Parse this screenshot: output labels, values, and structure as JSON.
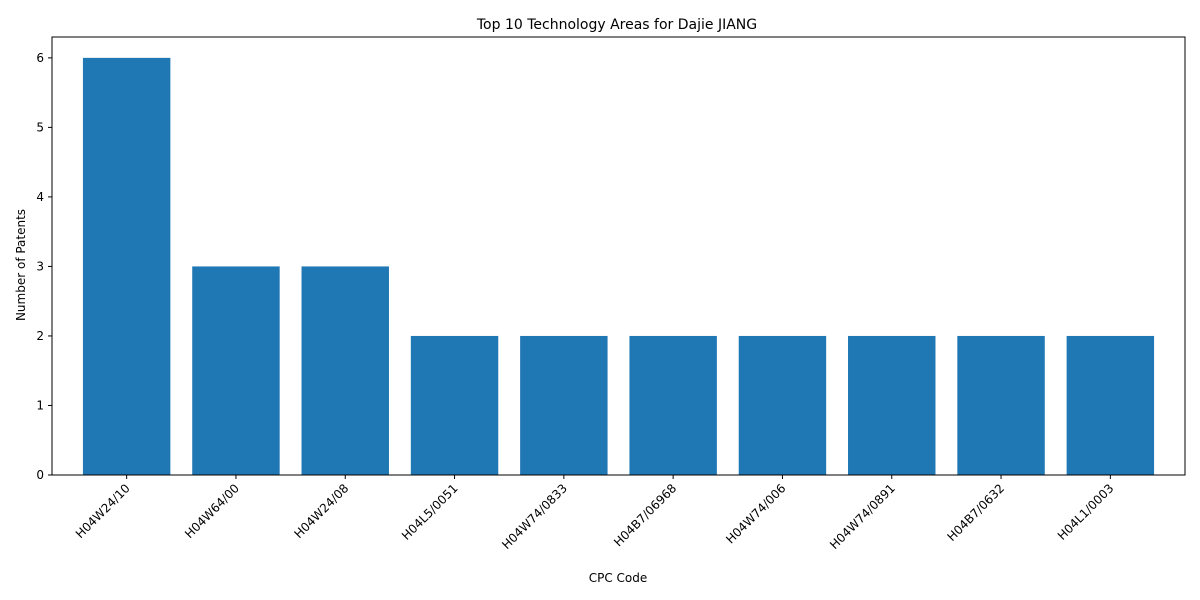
{
  "chart_data": {
    "type": "bar",
    "title": "Top 10 Technology Areas for Dajie JIANG",
    "xlabel": "CPC Code",
    "ylabel": "Number of Patents",
    "categories": [
      "H04W24/10",
      "H04W64/00",
      "H04W24/08",
      "H04L5/0051",
      "H04W74/0833",
      "H04B7/06968",
      "H04W74/006",
      "H04W74/0891",
      "H04B7/0632",
      "H04L1/0003"
    ],
    "values": [
      6,
      3,
      3,
      2,
      2,
      2,
      2,
      2,
      2,
      2
    ],
    "ylim": [
      0,
      6.3
    ],
    "yticks": [
      0,
      1,
      2,
      3,
      4,
      5,
      6
    ],
    "bar_color": "#1f77b4",
    "grid": false,
    "legend": "none"
  }
}
